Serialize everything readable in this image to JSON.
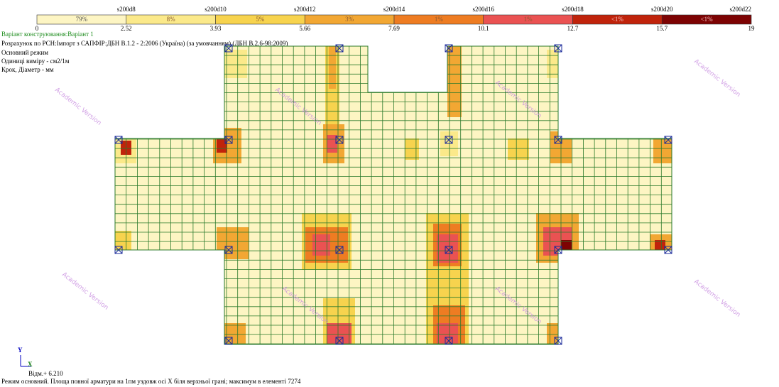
{
  "legend": {
    "headers": [
      "s200d8",
      "s200d10",
      "s200d12",
      "s200d14",
      "s200d16",
      "s200d18",
      "s200d20",
      "s200d22"
    ],
    "segments": [
      {
        "percent": "79%",
        "color": "#fdf5c3"
      },
      {
        "percent": "8%",
        "color": "#fbe98a"
      },
      {
        "percent": "5%",
        "color": "#f7d34e"
      },
      {
        "percent": "3%",
        "color": "#f2a733"
      },
      {
        "percent": "1%",
        "color": "#ee7c22"
      },
      {
        "percent": "1%",
        "color": "#ea5252"
      },
      {
        "percent": "<1%",
        "color": "#c0230b"
      },
      {
        "percent": "<1%",
        "color": "#7d0303"
      }
    ],
    "bounds": [
      0,
      2.52,
      3.93,
      5.66,
      7.69,
      10.1,
      12.7,
      15.7,
      19
    ]
  },
  "info": {
    "variant": "Варіант конструювання:Варіант 1",
    "lines": [
      "Розрахунок по РСН:Імпорт з САПФІР:ДБН В.1.2 - 2:2006 (Україна) (за умовчанням) (ДБН В.2.6-98:2009)",
      "Основний режим",
      "Одиниці виміру - см2/1м",
      "Крок, Діаметр - мм"
    ]
  },
  "axes": {
    "y": "Y",
    "x": "X"
  },
  "elevation": "Відм.+ 6.210",
  "footer": "Режим основний. Площа повної арматури на 1пм уздовж осі X біля верхньої грані; максимум в елементі 7274",
  "watermark": "Academic Version"
}
